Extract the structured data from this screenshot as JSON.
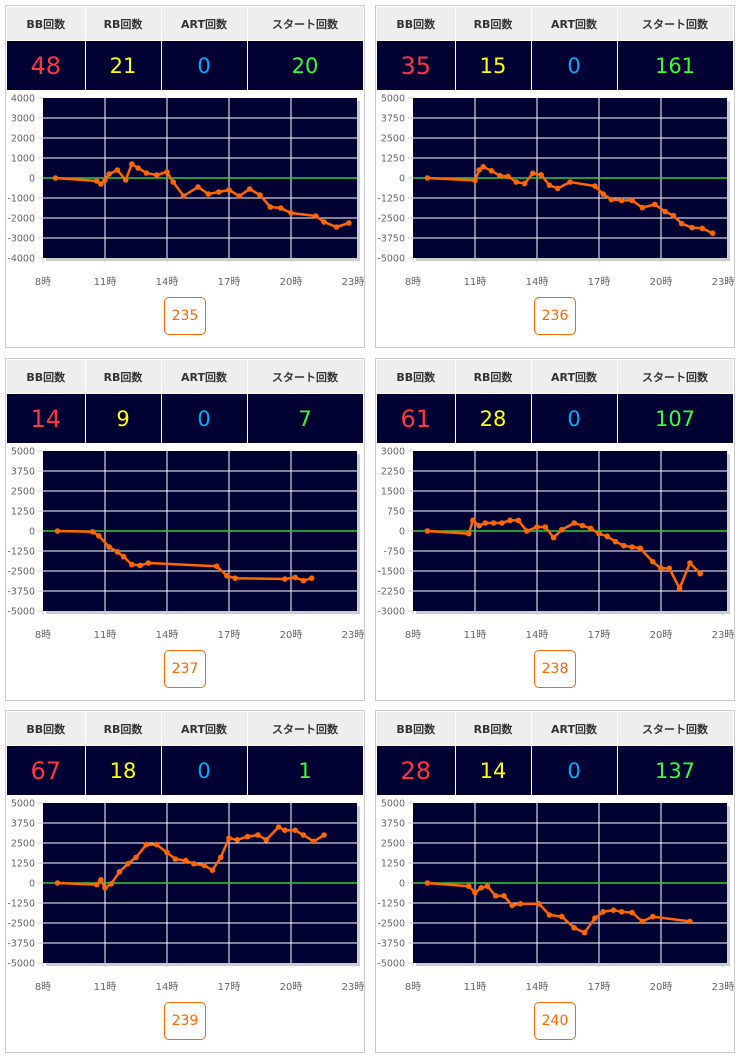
{
  "headers": [
    "BB回数",
    "RB回数",
    "ART回数",
    "スタート回数"
  ],
  "chart_data": [
    {
      "type": "line",
      "id": "235",
      "stats": {
        "bb": "48",
        "rb": "21",
        "art": "0",
        "start": "20"
      },
      "ylim": [
        -4000,
        4000
      ],
      "yticks": [
        4000,
        3000,
        2000,
        1000,
        0,
        -1000,
        -2000,
        -3000,
        -4000
      ],
      "xticks": [
        "8時",
        "11時",
        "14時",
        "17時",
        "20時",
        "23時"
      ],
      "xlim": [
        8,
        23
      ],
      "points": [
        [
          8.6,
          0
        ],
        [
          10.6,
          -150
        ],
        [
          10.8,
          -300
        ],
        [
          11,
          -100
        ],
        [
          11.2,
          200
        ],
        [
          11.6,
          400
        ],
        [
          12,
          -100
        ],
        [
          12.3,
          700
        ],
        [
          12.6,
          500
        ],
        [
          13,
          250
        ],
        [
          13.5,
          150
        ],
        [
          14,
          300
        ],
        [
          14.3,
          -200
        ],
        [
          14.8,
          -900
        ],
        [
          15.5,
          -450
        ],
        [
          16,
          -800
        ],
        [
          16.5,
          -700
        ],
        [
          17,
          -600
        ],
        [
          17.5,
          -900
        ],
        [
          18,
          -550
        ],
        [
          18.5,
          -850
        ],
        [
          19,
          -1450
        ],
        [
          19.5,
          -1500
        ],
        [
          20,
          -1750
        ],
        [
          21.2,
          -1900
        ],
        [
          21.6,
          -2200
        ],
        [
          22.2,
          -2450
        ],
        [
          22.8,
          -2250
        ]
      ]
    },
    {
      "type": "line",
      "id": "236",
      "stats": {
        "bb": "35",
        "rb": "15",
        "art": "0",
        "start": "161"
      },
      "ylim": [
        -5000,
        5000
      ],
      "yticks": [
        5000,
        3750,
        2500,
        1250,
        0,
        -1250,
        -2500,
        -3750,
        -5000
      ],
      "xticks": [
        "8時",
        "11時",
        "14時",
        "17時",
        "20時",
        "23時"
      ],
      "xlim": [
        8,
        23
      ],
      "points": [
        [
          8.7,
          0
        ],
        [
          11,
          -150
        ],
        [
          11.2,
          500
        ],
        [
          11.4,
          700
        ],
        [
          11.8,
          450
        ],
        [
          12.2,
          150
        ],
        [
          12.6,
          100
        ],
        [
          13,
          -250
        ],
        [
          13.4,
          -350
        ],
        [
          13.8,
          300
        ],
        [
          14.2,
          200
        ],
        [
          14.6,
          -450
        ],
        [
          15,
          -650
        ],
        [
          15.6,
          -250
        ],
        [
          16.8,
          -500
        ],
        [
          17.2,
          -1000
        ],
        [
          17.6,
          -1350
        ],
        [
          18.1,
          -1400
        ],
        [
          18.6,
          -1400
        ],
        [
          19.1,
          -1850
        ],
        [
          19.7,
          -1650
        ],
        [
          20.2,
          -2100
        ],
        [
          20.6,
          -2350
        ],
        [
          21,
          -2850
        ],
        [
          21.5,
          -3100
        ],
        [
          22,
          -3150
        ],
        [
          22.5,
          -3450
        ]
      ]
    },
    {
      "type": "line",
      "id": "237",
      "stats": {
        "bb": "14",
        "rb": "9",
        "art": "0",
        "start": "7"
      },
      "ylim": [
        -5000,
        5000
      ],
      "yticks": [
        5000,
        3750,
        2500,
        1250,
        0,
        -1250,
        -2500,
        -3750,
        -5000
      ],
      "xticks": [
        "8時",
        "11時",
        "14時",
        "17時",
        "20時",
        "23時"
      ],
      "xlim": [
        8,
        23
      ],
      "points": [
        [
          8.7,
          0
        ],
        [
          10.4,
          -50
        ],
        [
          10.7,
          -300
        ],
        [
          11.2,
          -1000
        ],
        [
          11.6,
          -1300
        ],
        [
          11.9,
          -1600
        ],
        [
          12.3,
          -2100
        ],
        [
          12.7,
          -2150
        ],
        [
          13.1,
          -2000
        ],
        [
          16.4,
          -2200
        ],
        [
          16.9,
          -2800
        ],
        [
          17.3,
          -2950
        ],
        [
          19.7,
          -3000
        ],
        [
          20.2,
          -2900
        ],
        [
          20.6,
          -3100
        ],
        [
          21,
          -2950
        ]
      ]
    },
    {
      "type": "line",
      "id": "238",
      "stats": {
        "bb": "61",
        "rb": "28",
        "art": "0",
        "start": "107"
      },
      "ylim": [
        -3000,
        3000
      ],
      "yticks": [
        3000,
        2250,
        1500,
        750,
        0,
        -750,
        -1500,
        -2250,
        -3000
      ],
      "xticks": [
        "8時",
        "11時",
        "14時",
        "17時",
        "20時",
        "23時"
      ],
      "xlim": [
        8,
        23
      ],
      "points": [
        [
          8.7,
          0
        ],
        [
          10.7,
          -100
        ],
        [
          10.9,
          400
        ],
        [
          11.2,
          200
        ],
        [
          11.5,
          300
        ],
        [
          11.9,
          300
        ],
        [
          12.3,
          300
        ],
        [
          12.7,
          400
        ],
        [
          13.1,
          400
        ],
        [
          13.5,
          0
        ],
        [
          14,
          150
        ],
        [
          14.4,
          150
        ],
        [
          14.8,
          -250
        ],
        [
          15.2,
          50
        ],
        [
          15.8,
          300
        ],
        [
          16.2,
          200
        ],
        [
          16.6,
          100
        ],
        [
          17,
          -100
        ],
        [
          17.4,
          -200
        ],
        [
          17.8,
          -400
        ],
        [
          18.2,
          -550
        ],
        [
          18.6,
          -600
        ],
        [
          19,
          -650
        ],
        [
          19.6,
          -1150
        ],
        [
          20,
          -1400
        ],
        [
          20.4,
          -1400
        ],
        [
          20.9,
          -2150
        ],
        [
          21.4,
          -1200
        ],
        [
          21.9,
          -1600
        ]
      ]
    },
    {
      "type": "line",
      "id": "239",
      "stats": {
        "bb": "67",
        "rb": "18",
        "art": "0",
        "start": "1"
      },
      "ylim": [
        -5000,
        5000
      ],
      "yticks": [
        5000,
        3750,
        2500,
        1250,
        0,
        -1250,
        -2500,
        -3750,
        -5000
      ],
      "xticks": [
        "8時",
        "11時",
        "14時",
        "17時",
        "20時",
        "23時"
      ],
      "xlim": [
        8,
        23
      ],
      "points": [
        [
          8.7,
          0
        ],
        [
          10.6,
          -100
        ],
        [
          10.8,
          200
        ],
        [
          11,
          -300
        ],
        [
          11.3,
          -50
        ],
        [
          11.7,
          700
        ],
        [
          12.1,
          1200
        ],
        [
          12.5,
          1600
        ],
        [
          13,
          2400
        ],
        [
          13.5,
          2400
        ],
        [
          14,
          1900
        ],
        [
          14.4,
          1500
        ],
        [
          14.9,
          1400
        ],
        [
          15.3,
          1200
        ],
        [
          15.8,
          1100
        ],
        [
          16.2,
          800
        ],
        [
          16.6,
          1600
        ],
        [
          17,
          2800
        ],
        [
          17.4,
          2700
        ],
        [
          17.9,
          2900
        ],
        [
          18.4,
          3000
        ],
        [
          18.8,
          2700
        ],
        [
          19.4,
          3500
        ],
        [
          19.7,
          3300
        ],
        [
          20.2,
          3300
        ],
        [
          20.6,
          3000
        ],
        [
          21.1,
          2600
        ],
        [
          21.6,
          3000
        ]
      ]
    },
    {
      "type": "line",
      "id": "240",
      "stats": {
        "bb": "28",
        "rb": "14",
        "art": "0",
        "start": "137"
      },
      "ylim": [
        -5000,
        5000
      ],
      "yticks": [
        5000,
        3750,
        2500,
        1250,
        0,
        -1250,
        -2500,
        -3750,
        -5000
      ],
      "xticks": [
        "8時",
        "11時",
        "14時",
        "17時",
        "20時",
        "23時"
      ],
      "xlim": [
        8,
        23
      ],
      "points": [
        [
          8.7,
          0
        ],
        [
          10.7,
          -200
        ],
        [
          11,
          -600
        ],
        [
          11.3,
          -300
        ],
        [
          11.6,
          -200
        ],
        [
          12,
          -800
        ],
        [
          12.4,
          -800
        ],
        [
          12.8,
          -1400
        ],
        [
          13.2,
          -1300
        ],
        [
          14.1,
          -1300
        ],
        [
          14.6,
          -2000
        ],
        [
          15.2,
          -2100
        ],
        [
          15.8,
          -2800
        ],
        [
          16.3,
          -3100
        ],
        [
          16.8,
          -2200
        ],
        [
          17.2,
          -1800
        ],
        [
          17.7,
          -1700
        ],
        [
          18.1,
          -1800
        ],
        [
          18.6,
          -1850
        ],
        [
          19.1,
          -2400
        ],
        [
          19.6,
          -2100
        ],
        [
          21.4,
          -2400
        ]
      ]
    }
  ]
}
